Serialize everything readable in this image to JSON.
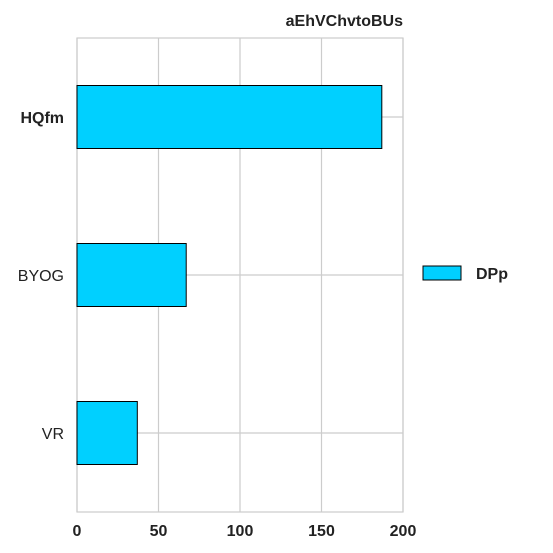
{
  "chart_data": {
    "type": "bar",
    "orientation": "horizontal",
    "title": "aEhVChvtoBUs",
    "categories": [
      "HQfm",
      "BYOG",
      "VR"
    ],
    "series": [
      {
        "name": "DPp",
        "values": [
          187,
          67,
          37
        ],
        "color": "#00d0ff"
      }
    ],
    "xlim": [
      0,
      200
    ],
    "xticks": [
      "0",
      "50",
      "100",
      "150",
      "200"
    ],
    "xlabel": "",
    "ylabel": "",
    "grid": true,
    "legend_position": "right"
  }
}
